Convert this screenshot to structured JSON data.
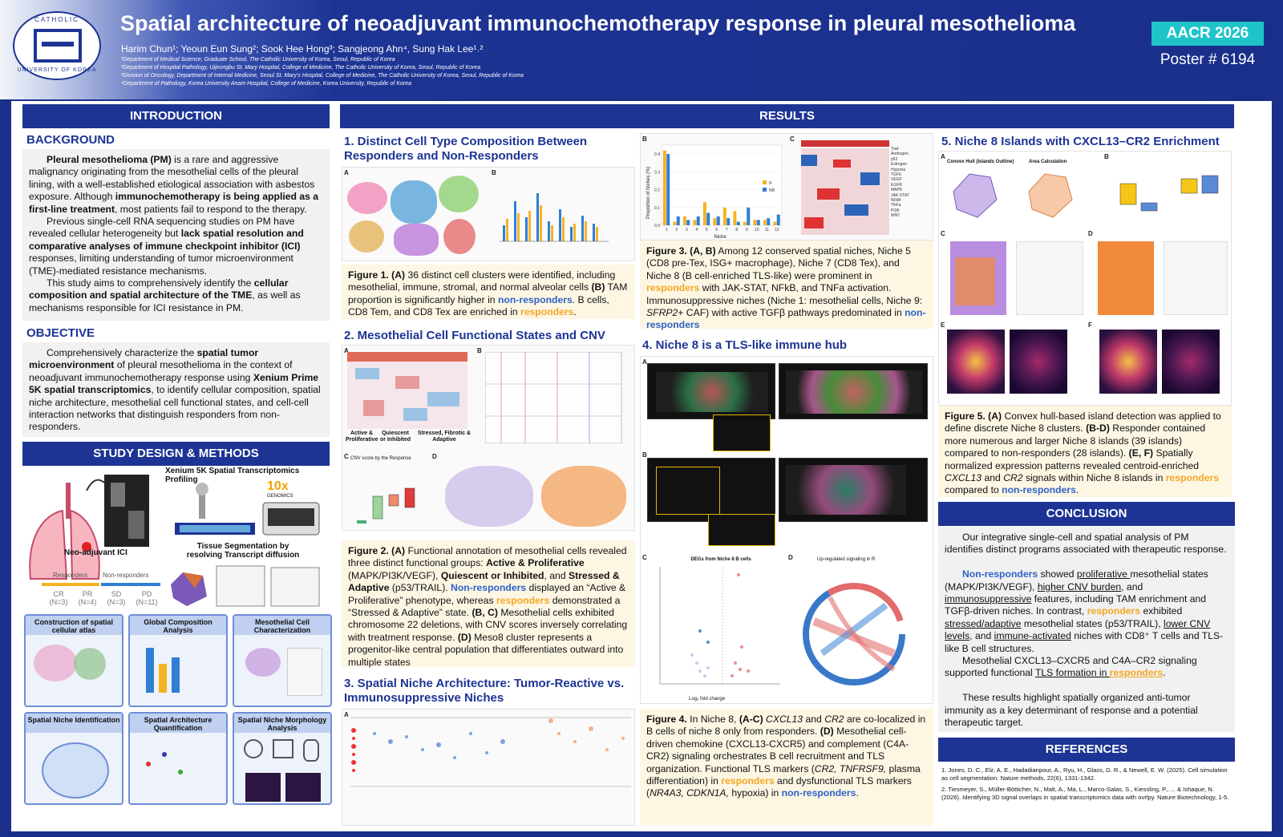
{
  "header": {
    "logo_top": "CATHOLIC",
    "logo_bottom": "UNIVERSITY OF KOREA",
    "title": "Spatial architecture of neoadjuvant immunochemotherapy response in pleural mesothelioma",
    "authors": "Harim Chun¹; Yeoun Eun Sung²; Sook Hee Hong³; Sangjeong Ahn⁴, Sung Hak Lee¹˒²",
    "affiliations": [
      "¹Department of Medical Science, Graduate School, The Catholic University of Korea, Seoul, Republic of Korea",
      "²Department of Hospital Pathology, Uijeongbu St. Mary Hospital, College of Medicine, The Catholic University of Korea, Seoul, Republic of Korea",
      "³Division of Oncology, Department of Internal Medicine, Seoul St. Mary's Hospital, College of Medicine, The Catholic University of Korea, Seoul, Republic of Korea",
      "⁴Department of Pathology, Korea University Anam Hospital, College of Medicine, Korea University, Republic of Korea"
    ],
    "conference": "AACR 2026",
    "poster_number": "Poster # 6194"
  },
  "intro": {
    "heading": "INTRODUCTION",
    "background_title": "BACKGROUND",
    "bg_p1_b1": "Pleural mesothelioma (PM)",
    "bg_p1_t1": " is a rare and aggressive malignancy originating from the mesothelial cells of the pleural lining, with a well-established etiological association with asbestos exposure. Although ",
    "bg_p1_b2": "immunochemotherapy is being applied as a first-line treatment",
    "bg_p1_t2": ", most patients fail to respond to the therapy.",
    "bg_p2_t1": "Previous single-cell RNA sequencing studies on PM have revealed cellular heterogeneity but ",
    "bg_p2_b1": "lack spatial resolution and comparative analyses of immune checkpoint inhibitor (ICI)",
    "bg_p2_t2": " responses, limiting understanding of tumor microenvironment (TME)-mediated resistance mechanisms.",
    "bg_p3_t1": "This study aims to comprehensively identify the ",
    "bg_p3_b1": "cellular composition and spatial architecture of the TME",
    "bg_p3_t2": ", as well as mechanisms responsible for ICI resistance in PM.",
    "objective_title": "OBJECTIVE",
    "obj_t1": "Comprehensively characterize the ",
    "obj_b1": "spatial tumor microenvironment",
    "obj_t2": " of pleural mesothelioma in the context of neoadjuvant immunochemotherapy response using ",
    "obj_b2": "Xenium Prime 5K spatial transcriptomics",
    "obj_t3": ", to identify cellular composition, spatial niche architecture, mesothelial cell functional states, and cell-cell interaction networks that distinguish responders from non-responders."
  },
  "methods": {
    "heading": "STUDY DESIGN & METHODS",
    "xenium_label": "Xenium 5K Spatial Transcriptomics Profiling",
    "tenx_logo": "10x",
    "tenx_sub": "GENOMICS",
    "neo_label": "Neo-adjuvant ICI",
    "tissue_seg": "Tissue Segmentation by resolving Transcript diffusion",
    "responders": "Responders",
    "nonresponders": "Non-responders",
    "groups": [
      {
        "name": "CR",
        "n": "(N=3)"
      },
      {
        "name": "PR",
        "n": "(N=4)"
      },
      {
        "name": "SD",
        "n": "(N=3)"
      },
      {
        "name": "PD",
        "n": "(N=11)"
      }
    ],
    "boxes": [
      "Construction of spatial cellular atlas",
      "Global Composition Analysis",
      "Mesothelial Cell Characterization",
      "Spatial Niche Identification",
      "Spatial Architecture Quantification",
      "Spatial Niche Morphology Analysis"
    ]
  },
  "results": {
    "heading": "RESULTS",
    "s1_title": "1. Distinct Cell Type Composition Between Responders and Non-Responders",
    "fig1_b1": "Figure 1. (A)",
    "fig1_t1": " 36 distinct cell clusters were identified, including mesothelial, immune, stromal, and normal alveolar cells ",
    "fig1_b2": "(B)",
    "fig1_t2": " TAM proportion is significantly higher in ",
    "fig1_nr": "non-responders",
    "fig1_t3": ". B cells, CD8 Tem, and CD8 Tex are enriched in ",
    "fig1_r": "responders",
    "fig1_t4": ".",
    "s2_title": "2. Mesothelial Cell Functional States and CNV",
    "fig2_groups": [
      "Active & Proliferative",
      "Quiescent or Inhibited",
      "Stressed, Fibrotic & Adaptive"
    ],
    "fig2_cnv_title": "CNV score by the Response",
    "fig2_b1": "Figure 2. (A)",
    "fig2_t1": " Functional annotation of mesothelial cells revealed three distinct functional groups: ",
    "fig2_b2": "Active & Proliferative",
    "fig2_t2": " (MAPK/PI3K/VEGF), ",
    "fig2_b3": "Quiescent or Inhibited",
    "fig2_t3": ", and ",
    "fig2_b4": "Stressed & Adaptive",
    "fig2_t4": " (p53/TRAIL). ",
    "fig2_nr": "Non-responders",
    "fig2_t5": " displayed an “Active & Proliferative” phenotype, whereas ",
    "fig2_r": "responders",
    "fig2_t6": " demonstrated a “Stressed & Adaptive” state. ",
    "fig2_b5": "(B, C)",
    "fig2_t7": " Mesothelial cells exhibited chromosome 22 deletions, with CNV scores inversely correlating with treatment response. ",
    "fig2_b6": "(D)",
    "fig2_t8": " Meso8 cluster represents a progenitor-like central population that differentiates outward into multiple states",
    "s3_title": "3. Spatial Niche Architecture: Tumor-Reactive vs. Immunosuppressive Niches",
    "fig3_xlabel": "Niche",
    "fig3_ylabel": "Proportion of Niches (%)",
    "fig3_b1": "Figure 3. (A, B)",
    "fig3_t1": " Among 12 conserved spatial niches, Niche 5 (CD8 pre-Tex, ISG+ macrophage), Niche 7 (CD8 Tex), and Niche 8 (B cell-enriched TLS-like) were prominent in ",
    "fig3_r": "responders",
    "fig3_t2": " with JAK-STAT, NFkB, and TNFa activation. Immunosuppressive niches (Niche 1: mesothelial cells, Niche 9: ",
    "fig3_i1": "SFRP2",
    "fig3_t3": "+ CAF) with active TGFβ pathways predominated in ",
    "fig3_nr": "non-responders",
    "heatmap_rows": [
      "Trail",
      "Androgen",
      "p53",
      "Estrogen",
      "Hypoxia",
      "TGFb",
      "VEGF",
      "EGFR",
      "MAPK",
      "JAK-STAT",
      "NFkB",
      "TNFa",
      "PI3K",
      "WNT"
    ],
    "s4_title": "4. Niche 8 is a TLS-like immune hub",
    "fig4_degs_title": "DEGs from Niche 8 B cells",
    "fig4_circos_title": "Up-regulated signaling in R",
    "fig4_xlabel": "Log₂ fold change",
    "fig4_b1": "Figure 4.",
    "fig4_t1": " In Niche 8, ",
    "fig4_b2": "(A-C)",
    "fig4_i1": " CXCL13",
    "fig4_t2": " and ",
    "fig4_i2": "CR2",
    "fig4_t3": " are co-localized in B cells of niche 8 only from responders. ",
    "fig4_b3": "(D)",
    "fig4_t4": " Mesothelial cell-driven chemokine (CXCL13-CXCR5) and complement (C4A-CR2) signaling orchestrates B cell recruitment and TLS organization. Functional TLS markers (",
    "fig4_i3": "CR2, TNFRSF9,",
    "fig4_t5": " plasma differentiation) in ",
    "fig4_r": "responders",
    "fig4_t6": " and dysfunctional TLS markers (",
    "fig4_i4": "NR4A3, CDKN1A,",
    "fig4_t7": " hypoxia) in ",
    "fig4_nr": "non-responders",
    "fig4_t8": ".",
    "s5_title": "5. Niche 8 Islands with CXCL13–CR2 Enrichment",
    "fig5_hull_title": "Convex Hull (Islands Outline)",
    "fig5_area_title": "Area Calculation",
    "fig5_b1": "Figure 5. (A)",
    "fig5_t1": " Convex hull-based island detection was applied to define discrete Niche 8 clusters. ",
    "fig5_b2": "(B-D)",
    "fig5_t2": " Responder contained more numerous and larger Niche 8 islands (39 islands) compared to non-responders (28 islands). ",
    "fig5_b3": "(E, F)",
    "fig5_t3": " Spatially normalized expression patterns revealed centroid-enriched ",
    "fig5_i1": "CXCL13",
    "fig5_t4": " and ",
    "fig5_i2": "CR2",
    "fig5_t5": " signals within Niche 8 islands in ",
    "fig5_r": "responders",
    "fig5_t6": " compared to ",
    "fig5_nr": "non-responders",
    "fig5_t7": "."
  },
  "conclusion": {
    "heading": "CONCLUSION",
    "p1": "Our integrative single-cell and spatial analysis of PM identifies distinct programs associated with therapeutic response.",
    "p2_nr": "Non-responders",
    "p2_t1": " showed ",
    "p2_u1": "proliferative ",
    "p2_t2": "mesothelial states (MAPK/PI3K/VEGF), ",
    "p2_u2": "higher CNV burden",
    "p2_t3": ", and ",
    "p2_u3": "immunosuppressive",
    "p2_t4": " features, including TAM enrichment and TGFβ-driven niches. In contrast, ",
    "p2_r": "responders",
    "p2_t5": " exhibited ",
    "p2_u4": "stressed/adaptive",
    "p2_t6": " mesothelial states (p53/TRAIL), ",
    "p2_u5": "lower CNV levels",
    "p2_t7": ", and ",
    "p2_u6": "immune-activated",
    "p2_t8": " niches with CD8⁺ T cells and TLS-like B cell structures.",
    "p3_t1": "Mesothelial CXCL13–CXCR5 and C4A–CR2 signaling supported functional ",
    "p3_u1": "TLS formation in ",
    "p3_r": "responders",
    "p3_t2": ".",
    "p4": "These results highlight spatially organized anti-tumor immunity as a key determinant of response and a potential therapeutic target."
  },
  "references": {
    "heading": "REFERENCES",
    "items": [
      "1.  Jones, D. C., Elz, A. E., Hadadianpour, A., Ryu, H., Glass, D. R., & Newell, E. W. (2025). Cell simulation as cell segmentation. Nature methods, 22(6), 1331-1342.",
      "2.  Tiesmeyer, S., Müller-Bötticher, N., Malt, A., Ma, L., Marco-Salas, S., Kiessling, P., ... & Ishaque, N. (2026). Identifying 3D signal overlaps in spatial transcriptomics data with ovrlpy. Nature Biotechnology, 1-5."
    ]
  },
  "chart_data": {
    "type": "bar",
    "categories": [
      "1",
      "2",
      "3",
      "4",
      "5",
      "6",
      "7",
      "8",
      "9",
      "10",
      "11",
      "12"
    ],
    "series": [
      {
        "name": "R",
        "values": [
          0.42,
          0.02,
          0.05,
          0.03,
          0.13,
          0.04,
          0.1,
          0.08,
          0.02,
          0.03,
          0.03,
          0.02
        ]
      },
      {
        "name": "NR",
        "values": [
          0.4,
          0.05,
          0.03,
          0.05,
          0.07,
          0.05,
          0.04,
          0.02,
          0.1,
          0.03,
          0.04,
          0.06
        ]
      }
    ],
    "title": "",
    "xlabel": "Niche",
    "ylabel": "Proportion of Niches (%)",
    "ylim": [
      0,
      0.45
    ],
    "yticks": [
      0.0,
      0.1,
      0.2,
      0.3,
      0.4
    ],
    "colors": {
      "R": "#f5b324",
      "NR": "#2f7fd6"
    }
  }
}
